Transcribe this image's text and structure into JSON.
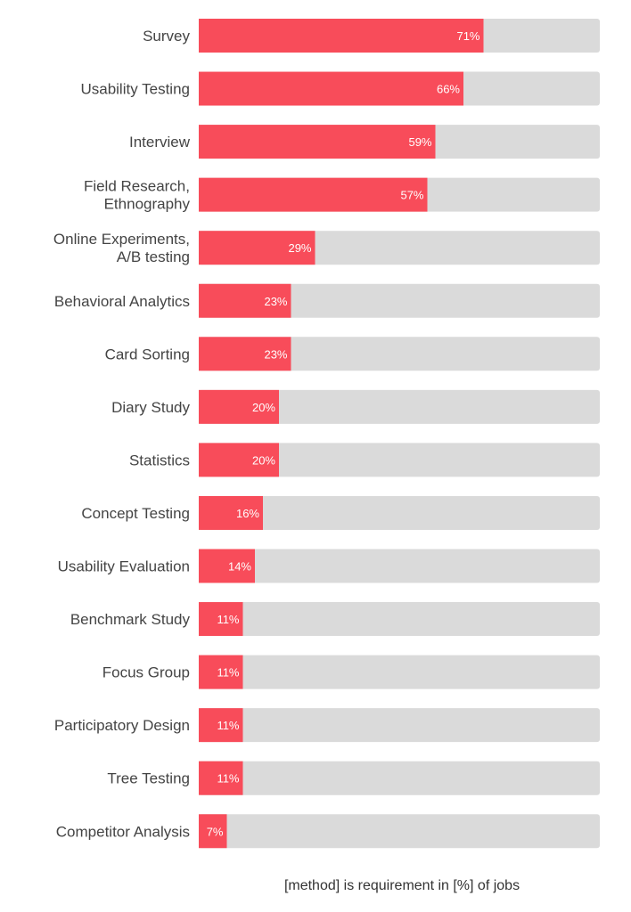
{
  "chart_data": {
    "type": "bar",
    "orientation": "horizontal",
    "categories": [
      "Survey",
      "Usability Testing",
      "Interview",
      "Field Research,\nEthnography",
      "Online Experiments,\nA/B testing",
      "Behavioral Analytics",
      "Card Sorting",
      "Diary Study",
      "Statistics",
      "Concept Testing",
      "Usability Evaluation",
      "Benchmark Study",
      "Focus Group",
      "Participatory Design",
      "Tree Testing",
      "Competitor Analysis"
    ],
    "values": [
      71,
      66,
      59,
      57,
      29,
      23,
      23,
      20,
      20,
      16,
      14,
      11,
      11,
      11,
      11,
      7
    ],
    "value_labels": [
      "71%",
      "66%",
      "59%",
      "57%",
      "29%",
      "23%",
      "23%",
      "20%",
      "20%",
      "16%",
      "14%",
      "11%",
      "11%",
      "11%",
      "11%",
      "7%"
    ],
    "xlim": [
      0,
      100
    ],
    "xlabel": "[method] is requirement in [%] of jobs",
    "ylabel": "",
    "title": "",
    "grid": false,
    "legend": "none",
    "colors": {
      "bar": "#f84c5a",
      "track": "#dadada",
      "category_text": "#444444",
      "value_text": "#ffffff",
      "caption_text": "#333333"
    }
  }
}
